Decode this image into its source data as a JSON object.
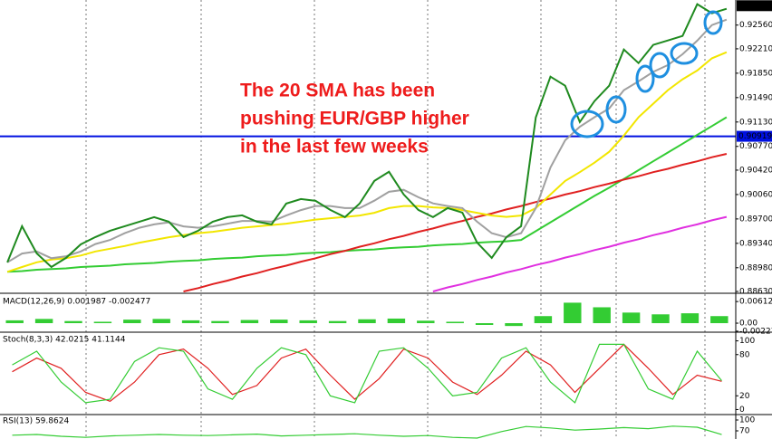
{
  "chart_data": [
    {
      "type": "line",
      "annotation": [
        "The 20 SMA has been",
        "pushing EUR/GBP higher",
        "in the last few weeks"
      ],
      "categories": [
        null,
        null,
        null,
        null,
        null,
        null,
        null,
        null,
        null,
        null,
        null,
        null,
        null,
        null,
        null,
        null,
        null,
        null,
        null,
        null,
        null,
        null,
        null,
        null,
        null,
        null,
        null,
        null,
        null,
        null,
        null,
        null,
        null,
        null,
        null,
        null,
        null,
        null,
        null,
        null,
        null,
        null,
        null,
        null,
        null,
        null,
        null,
        null,
        null,
        null
      ],
      "series": [
        {
          "color": "#33cc33",
          "values": [
            0.8892,
            0.8893,
            0.8895,
            0.8896,
            0.8897,
            0.8899,
            0.89,
            0.8901,
            0.8903,
            0.8904,
            0.8905,
            0.8907,
            0.8908,
            0.8909,
            0.8911,
            0.8912,
            0.8913,
            0.8915,
            0.8916,
            0.8917,
            0.8919,
            0.892,
            0.8921,
            0.8923,
            0.8924,
            0.8925,
            0.8927,
            0.8928,
            0.8929,
            0.8931,
            0.8932,
            0.8933,
            0.8935,
            0.8936,
            0.8937,
            0.8939,
            0.8952,
            0.8965,
            0.8978,
            0.8991,
            0.9004,
            0.9016,
            0.9029,
            0.9042,
            0.9055,
            0.9068,
            0.9081,
            0.9094,
            0.9107,
            0.912
          ]
        },
        {
          "color": "#e02020",
          "values": [
            null,
            null,
            null,
            null,
            null,
            null,
            null,
            null,
            null,
            null,
            null,
            null,
            0.8863,
            0.8868,
            0.8874,
            0.8879,
            0.8885,
            0.889,
            0.8896,
            0.8901,
            0.8907,
            0.8912,
            0.8918,
            0.8923,
            0.8929,
            0.8934,
            0.894,
            0.8945,
            0.8951,
            0.8956,
            0.8962,
            0.8967,
            0.8973,
            0.8978,
            0.8984,
            0.8989,
            0.8995,
            0.9,
            0.9006,
            0.9011,
            0.9017,
            0.9022,
            0.9028,
            0.9033,
            0.9039,
            0.9044,
            0.905,
            0.9055,
            0.9061,
            0.9066
          ]
        },
        {
          "color": "#e030e0",
          "values": [
            null,
            null,
            null,
            null,
            null,
            null,
            null,
            null,
            null,
            null,
            null,
            null,
            null,
            null,
            null,
            null,
            null,
            null,
            null,
            null,
            null,
            null,
            null,
            null,
            null,
            null,
            null,
            null,
            null,
            0.8863,
            0.8869,
            0.8874,
            0.888,
            0.8885,
            0.8891,
            0.8896,
            0.8902,
            0.8907,
            0.8913,
            0.8918,
            0.8924,
            0.8929,
            0.8935,
            0.894,
            0.8946,
            0.8951,
            0.8957,
            0.8962,
            0.8968,
            0.8973
          ]
        },
        {
          "color": "#f2e600",
          "values": [
            0.8892,
            0.8899,
            0.8906,
            0.891,
            0.8912,
            0.8916,
            0.8922,
            0.8926,
            0.893,
            0.8935,
            0.8939,
            0.8943,
            0.8946,
            0.8949,
            0.8951,
            0.8954,
            0.8957,
            0.8959,
            0.8961,
            0.8963,
            0.8966,
            0.8969,
            0.8971,
            0.8973,
            0.8975,
            0.8979,
            0.8986,
            0.8989,
            0.8989,
            0.8987,
            0.8986,
            0.8983,
            0.8979,
            0.8975,
            0.8973,
            0.8975,
            0.8986,
            0.9006,
            0.9026,
            0.9039,
            0.9053,
            0.9069,
            0.9093,
            0.912,
            0.914,
            0.916,
            0.9176,
            0.9189,
            0.9207,
            0.9216
          ]
        },
        {
          "color": "#a0a0a0",
          "values": [
            0.8906,
            0.8919,
            0.8922,
            0.8912,
            0.8915,
            0.8922,
            0.8933,
            0.8939,
            0.8949,
            0.8957,
            0.8962,
            0.8965,
            0.8959,
            0.8957,
            0.8959,
            0.8963,
            0.8967,
            0.8967,
            0.8966,
            0.8975,
            0.8983,
            0.8989,
            0.8989,
            0.8986,
            0.8986,
            0.8997,
            0.901,
            0.9013,
            0.9002,
            0.8993,
            0.8989,
            0.8986,
            0.8966,
            0.8949,
            0.8943,
            0.8949,
            0.8986,
            0.9046,
            0.9086,
            0.9106,
            0.912,
            0.9133,
            0.916,
            0.9173,
            0.9187,
            0.9197,
            0.9213,
            0.9233,
            0.9256,
            0.9264
          ]
        },
        {
          "color": "#1f8a1f",
          "values": [
            0.89058,
            0.89593,
            0.89192,
            0.88991,
            0.89125,
            0.89325,
            0.89432,
            0.89526,
            0.89593,
            0.89659,
            0.89726,
            0.89659,
            0.89432,
            0.89526,
            0.89659,
            0.89726,
            0.89753,
            0.89659,
            0.89619,
            0.89927,
            0.89994,
            0.89967,
            0.89833,
            0.89726,
            0.89927,
            0.90261,
            0.90395,
            0.90061,
            0.89833,
            0.89726,
            0.8986,
            0.89793,
            0.89352,
            0.89125,
            0.89432,
            0.89593,
            0.91197,
            0.91799,
            0.91665,
            0.9113,
            0.91438,
            0.91665,
            0.922,
            0.91999,
            0.92267,
            0.92333,
            0.924,
            0.92868,
            0.92735,
            0.92801
          ]
        }
      ],
      "ylim": [
        0.8863,
        0.9293
      ],
      "yticks": [
        {
          "value": 0.9256,
          "label": "0.92560"
        },
        {
          "value": 0.9221,
          "label": "0.92210"
        },
        {
          "value": 0.9185,
          "label": "0.91850"
        },
        {
          "value": 0.9149,
          "label": "0.91490"
        },
        {
          "value": 0.9113,
          "label": "0.91130"
        },
        {
          "value": 0.9077,
          "label": "0.90770"
        },
        {
          "value": 0.9042,
          "label": "0.90420"
        },
        {
          "value": 0.9006,
          "label": "0.90060"
        },
        {
          "value": 0.897,
          "label": "0.89700"
        },
        {
          "value": 0.8934,
          "label": "0.89340"
        },
        {
          "value": 0.8898,
          "label": "0.88980"
        },
        {
          "value": 0.8863,
          "label": "0.88630"
        }
      ],
      "level": {
        "value": 0.90919,
        "color": "#0010e0"
      },
      "price_marker": 0.92846
    },
    {
      "type": "bar",
      "title": "MACD(12,26,9) 0.001987 -0.002477",
      "color": "#33cc33",
      "categories": [
        null,
        null,
        null,
        null,
        null,
        null,
        null,
        null,
        null,
        null,
        null,
        null,
        null,
        null,
        null,
        null,
        null,
        null,
        null,
        null,
        null,
        null,
        null,
        null,
        null
      ],
      "values": [
        0.0008,
        0.0012,
        0.0006,
        0.0004,
        0.001,
        0.0012,
        0.0008,
        0.0006,
        0.0009,
        0.001,
        0.0008,
        0.0006,
        0.0011,
        0.0013,
        0.0007,
        0.0004,
        -0.0005,
        -0.0008,
        0.002,
        0.0058,
        0.0045,
        0.003,
        0.0025,
        0.0028,
        0.002
      ],
      "ylim": [
        -0.0023,
        0.0077
      ],
      "yticks": [
        0.006123,
        {
          "value": 0,
          "label": "0.00"
        },
        -0.002277
      ]
    },
    {
      "type": "line",
      "title": "Stoch(8,3,3) 42.0215 41.1144",
      "categories": [
        null,
        null,
        null,
        null,
        null,
        null,
        null,
        null,
        null,
        null,
        null,
        null,
        null,
        null,
        null,
        null,
        null,
        null,
        null,
        null,
        null,
        null,
        null,
        null,
        null,
        null,
        null,
        null,
        null,
        null
      ],
      "series": [
        {
          "color": "#e02020",
          "values": [
            55,
            75,
            60,
            25,
            12,
            40,
            80,
            88,
            60,
            22,
            35,
            75,
            88,
            50,
            15,
            45,
            88,
            75,
            40,
            22,
            50,
            85,
            65,
            25,
            60,
            95,
            60,
            22,
            50,
            41.1144
          ]
        },
        {
          "color": "#33cc33",
          "values": [
            65,
            85,
            40,
            10,
            15,
            70,
            90,
            85,
            30,
            15,
            60,
            90,
            80,
            20,
            10,
            85,
            90,
            60,
            20,
            25,
            75,
            90,
            40,
            10,
            95,
            95,
            30,
            15,
            85,
            42.0215
          ]
        }
      ],
      "ylim": [
        -6,
        110
      ],
      "yticks": [
        100,
        80,
        20,
        0
      ]
    },
    {
      "type": "line",
      "title": "RSI(13) 59.8624",
      "categories": [
        null,
        null,
        null,
        null,
        null,
        null,
        null,
        null,
        null,
        null,
        null,
        null,
        null,
        null,
        null,
        null,
        null,
        null,
        null,
        null,
        null,
        null,
        null,
        null,
        null,
        null,
        null,
        null,
        null,
        null
      ],
      "series": [
        {
          "color": "#33cc33",
          "values": [
            58,
            60,
            55,
            52,
            56,
            58,
            60,
            58,
            57,
            59,
            61,
            56,
            58,
            60,
            62,
            58,
            55,
            57,
            52,
            50,
            68,
            82,
            78,
            72,
            75,
            79,
            76,
            83,
            80,
            59.8624
          ]
        }
      ],
      "ylim": [
        47.5,
        112.5
      ],
      "yticks": [
        100,
        70
      ]
    }
  ]
}
